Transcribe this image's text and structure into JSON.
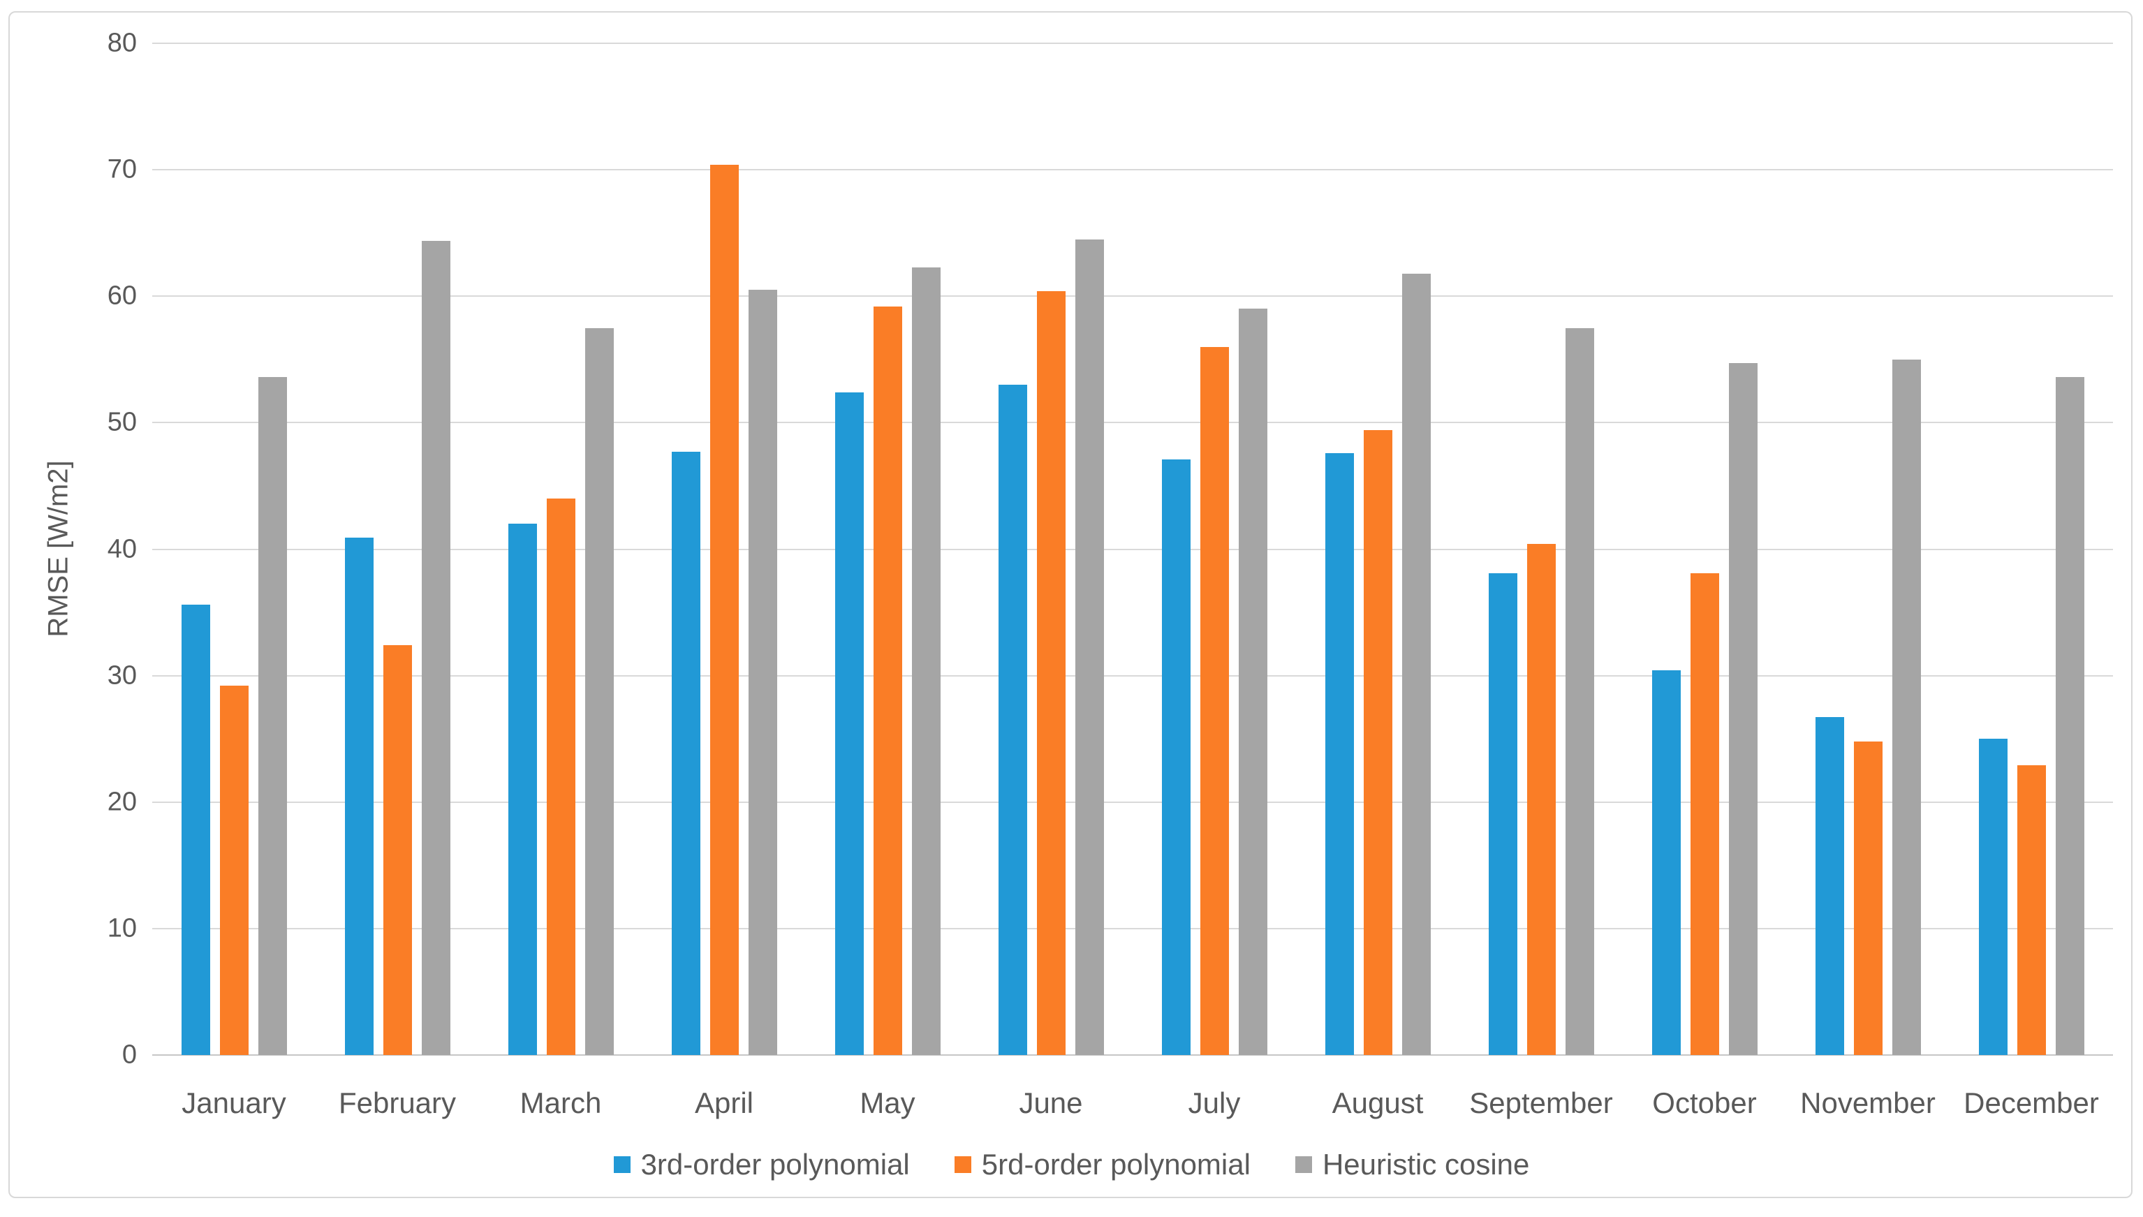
{
  "chart_data": {
    "type": "bar",
    "title": "",
    "xlabel": "",
    "ylabel": "RMSE [W/m2]",
    "ylim": [
      0,
      80
    ],
    "ytick_step": 10,
    "yticks": [
      0,
      10,
      20,
      30,
      40,
      50,
      60,
      70,
      80
    ],
    "grid": "horizontal",
    "legend_position": "bottom",
    "categories": [
      "January",
      "February",
      "March",
      "April",
      "May",
      "June",
      "July",
      "August",
      "September",
      "October",
      "November",
      "December"
    ],
    "series": [
      {
        "name": "3rd-order polynomial",
        "color": "#2199D6",
        "values": [
          35.6,
          40.9,
          42.0,
          47.7,
          52.4,
          53.0,
          47.1,
          47.6,
          38.1,
          30.4,
          26.7,
          25.0
        ]
      },
      {
        "name": "5rd-order polynomial",
        "color": "#FA7D26",
        "values": [
          29.2,
          32.4,
          44.0,
          70.4,
          59.2,
          60.4,
          56.0,
          49.4,
          40.4,
          38.1,
          24.8,
          22.9
        ]
      },
      {
        "name": "Heuristic cosine",
        "color": "#A5A5A5",
        "values": [
          53.6,
          64.4,
          57.5,
          60.5,
          62.3,
          64.5,
          59.0,
          61.8,
          57.5,
          54.7,
          55.0,
          53.6
        ]
      }
    ]
  },
  "style_colors": {
    "gridline": "#D9D9D9",
    "axis_line": "#C6C6C6",
    "frame_border": "#D8D8D8",
    "text": "#595959",
    "background": "#FFFFFF"
  }
}
